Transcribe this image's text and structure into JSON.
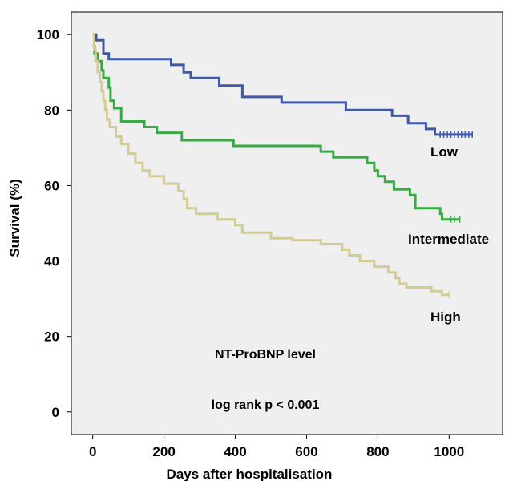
{
  "chart_data": {
    "type": "line",
    "xlabel": "Days after hospitalisation",
    "ylabel": "Survival (%)",
    "xlim": [
      -60,
      1150
    ],
    "ylim": [
      -6,
      106
    ],
    "xticks": [
      0,
      200,
      400,
      600,
      800,
      1000
    ],
    "yticks": [
      0,
      20,
      40,
      60,
      80,
      100
    ],
    "grid": false,
    "background": "#efefef",
    "annotations": [
      "NT-ProBNP level",
      "log rank p < 0.001"
    ],
    "series": [
      {
        "name": "Low",
        "color": "#3f59a6",
        "censor_x": [
          975,
          985,
          995,
          1005,
          1015,
          1025,
          1035,
          1045,
          1055,
          1065
        ],
        "steps": [
          [
            0,
            100
          ],
          [
            10,
            98.5
          ],
          [
            30,
            95
          ],
          [
            45,
            93.5
          ],
          [
            220,
            92
          ],
          [
            255,
            90
          ],
          [
            275,
            88.5
          ],
          [
            355,
            86.5
          ],
          [
            420,
            83.5
          ],
          [
            530,
            82
          ],
          [
            710,
            80
          ],
          [
            840,
            78.5
          ],
          [
            885,
            76.5
          ],
          [
            935,
            75
          ],
          [
            960,
            73.5
          ],
          [
            1065,
            73.5
          ]
        ]
      },
      {
        "name": "Intermediate",
        "color": "#3aaa46",
        "censor_x": [
          1005,
          1015,
          1030
        ],
        "steps": [
          [
            0,
            97
          ],
          [
            5,
            95
          ],
          [
            15,
            93
          ],
          [
            25,
            90.5
          ],
          [
            30,
            88.5
          ],
          [
            45,
            86
          ],
          [
            50,
            82.5
          ],
          [
            60,
            80.5
          ],
          [
            80,
            77
          ],
          [
            145,
            75.5
          ],
          [
            180,
            74
          ],
          [
            250,
            72
          ],
          [
            395,
            70.5
          ],
          [
            640,
            69
          ],
          [
            675,
            67.5
          ],
          [
            770,
            66
          ],
          [
            790,
            64
          ],
          [
            800,
            62.5
          ],
          [
            820,
            61
          ],
          [
            845,
            59
          ],
          [
            890,
            57.5
          ],
          [
            905,
            54
          ],
          [
            975,
            52.5
          ],
          [
            980,
            51
          ],
          [
            1030,
            51
          ]
        ]
      },
      {
        "name": "High",
        "color": "#d4cc96",
        "censor_x": [
          1000
        ],
        "steps": [
          [
            0,
            100
          ],
          [
            4,
            96
          ],
          [
            8,
            93
          ],
          [
            14,
            90
          ],
          [
            20,
            87.5
          ],
          [
            25,
            85
          ],
          [
            30,
            82.5
          ],
          [
            35,
            80
          ],
          [
            40,
            77.5
          ],
          [
            48,
            75.5
          ],
          [
            65,
            73
          ],
          [
            80,
            71
          ],
          [
            100,
            68.5
          ],
          [
            120,
            66
          ],
          [
            140,
            64
          ],
          [
            160,
            62.5
          ],
          [
            200,
            60.5
          ],
          [
            240,
            58.5
          ],
          [
            255,
            56.5
          ],
          [
            265,
            54
          ],
          [
            290,
            52.5
          ],
          [
            350,
            51
          ],
          [
            400,
            49.5
          ],
          [
            420,
            47.5
          ],
          [
            500,
            46
          ],
          [
            560,
            45.5
          ],
          [
            640,
            44.5
          ],
          [
            700,
            43
          ],
          [
            720,
            41.5
          ],
          [
            750,
            40
          ],
          [
            790,
            38.5
          ],
          [
            830,
            37
          ],
          [
            850,
            35.5
          ],
          [
            860,
            34
          ],
          [
            880,
            33
          ],
          [
            950,
            32
          ],
          [
            980,
            31
          ],
          [
            1000,
            31
          ]
        ]
      }
    ]
  }
}
